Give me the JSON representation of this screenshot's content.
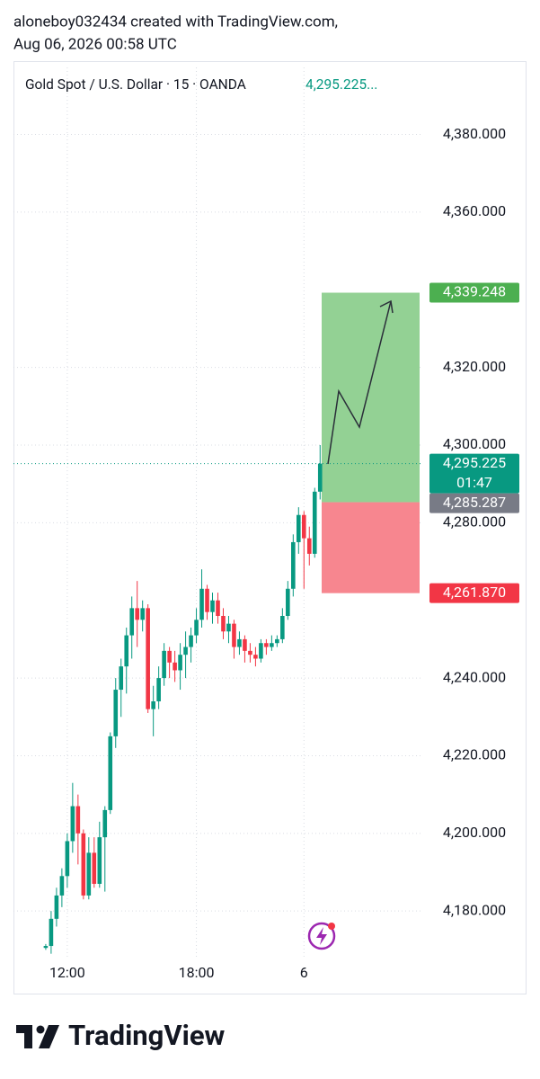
{
  "attribution": "aloneboy032434 created with TradingView.com,",
  "timestamp": "Aug 06, 2026 00:58 UTC",
  "footer": {
    "brand": "TradingView"
  },
  "chart_data": {
    "type": "candlestick",
    "title": "Gold Spot / U.S. Dollar · 15 · OANDA",
    "header_price": "4,295.225...",
    "up_color": "#089981",
    "down_color": "#f23645",
    "open": [
      4170.5,
      4171,
      4178,
      4184,
      4189,
      4198,
      4207,
      4200,
      4184,
      4195,
      4187,
      4199,
      4206,
      4225,
      4237,
      4243,
      4251,
      4258,
      4255,
      4258,
      4232,
      4234,
      4240,
      4247,
      4244,
      4242,
      4246,
      4248,
      4251,
      4255,
      4263,
      4257,
      4260,
      4256,
      4252,
      4254,
      4248,
      4250,
      4247,
      4246,
      4245,
      4249,
      4248,
      4249,
      4250,
      4256,
      4263,
      4275,
      4282,
      4276,
      4272,
      4288
    ],
    "high": [
      4171.5,
      4180,
      4186,
      4191,
      4200,
      4213,
      4210,
      4201,
      4199,
      4199,
      4203,
      4207,
      4226,
      4240,
      4245,
      4253,
      4261,
      4265,
      4260,
      4259,
      4238,
      4243,
      4249,
      4248,
      4247,
      4249,
      4252,
      4253,
      4258,
      4268,
      4264,
      4262,
      4262,
      4258,
      4256,
      4255,
      4252,
      4251,
      4249,
      4248,
      4250,
      4250,
      4251,
      4251,
      4258,
      4265,
      4277,
      4284,
      4283,
      4279,
      4289,
      4300
    ],
    "low": [
      4170,
      4169,
      4176,
      4181,
      4186,
      4195,
      4192,
      4183,
      4183,
      4186,
      4186,
      4185,
      4205,
      4222,
      4230,
      4236,
      4245,
      4248,
      4252,
      4231,
      4225,
      4232,
      4238,
      4240,
      4239,
      4237,
      4240,
      4244,
      4249,
      4253,
      4255,
      4254,
      4254,
      4250,
      4249,
      4245,
      4246,
      4244,
      4244,
      4243,
      4244,
      4246,
      4247,
      4248,
      4249,
      4255,
      4261,
      4272,
      4263,
      4269,
      4271,
      4286
    ],
    "close": [
      4171,
      4178,
      4184,
      4189,
      4198,
      4207,
      4200,
      4184,
      4195,
      4187,
      4199,
      4206,
      4225,
      4237,
      4243,
      4251,
      4258,
      4255,
      4258,
      4232,
      4234,
      4240,
      4247,
      4244,
      4242,
      4246,
      4248,
      4251,
      4255,
      4263,
      4257,
      4260,
      4256,
      4252,
      4254,
      4248,
      4250,
      4247,
      4246,
      4245,
      4249,
      4248,
      4249,
      4250,
      4256,
      4263,
      4275,
      4282,
      4276,
      4272,
      4288,
      4295.225
    ],
    "xlim": [
      -6,
      70
    ],
    "xticks": [
      {
        "value": 4,
        "label": "12:00"
      },
      {
        "value": 28,
        "label": "18:00"
      },
      {
        "value": 48,
        "label": "6"
      }
    ],
    "ylim": [
      4168,
      4388
    ],
    "yticks": [
      {
        "value": 4180,
        "label": "4,180.000"
      },
      {
        "value": 4200,
        "label": "4,200.000"
      },
      {
        "value": 4220,
        "label": "4,220.000"
      },
      {
        "value": 4240,
        "label": "4,240.000"
      },
      {
        "value": 4280,
        "label": "4,280.000"
      },
      {
        "value": 4300,
        "label": "4,300.000"
      },
      {
        "value": 4320,
        "label": "4,320.000"
      },
      {
        "value": 4360,
        "label": "4,360.000"
      },
      {
        "value": 4380,
        "label": "4,380.000"
      }
    ],
    "grid": true,
    "last_price": {
      "value": 4295.225,
      "label": "4,295.225",
      "countdown": "01:47",
      "color": "#089981"
    },
    "position": {
      "target": {
        "value": 4339.248,
        "label": "4,339.248",
        "color": "#4caf50",
        "fill": "#93d194"
      },
      "entry": {
        "value": 4285.287,
        "label": "4,285.287",
        "color": "#787b86"
      },
      "stop": {
        "value": 4261.87,
        "label": "4,261.870",
        "color": "#f23645",
        "fill": "#f7868f"
      }
    }
  }
}
